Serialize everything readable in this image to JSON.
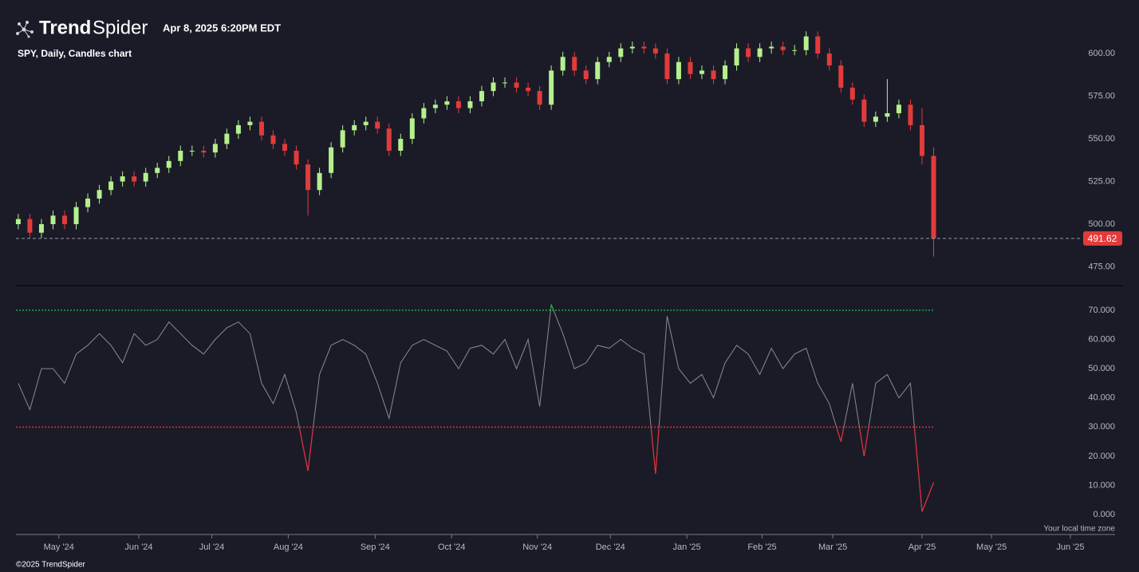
{
  "header": {
    "brand_bold": "Trend",
    "brand": "Spider",
    "timestamp": "Apr 8, 2025 6:20PM EDT"
  },
  "time_zone_note": "Your local time zone",
  "copyright": "©2025 TrendSpider",
  "chart_data": [
    {
      "type": "candlestick",
      "title": "SPY, Daily, Candles chart",
      "up_color": "#b5f08d",
      "down_color": "#e23b3b",
      "xlim": [
        -0.2,
        91.7
      ],
      "ylim": [
        464,
        622
      ],
      "yticks": [
        {
          "value": 475,
          "label": "475.00"
        },
        {
          "value": 500,
          "label": "500.00"
        },
        {
          "value": 525,
          "label": "525.00"
        },
        {
          "value": 550,
          "label": "550.00"
        },
        {
          "value": 575,
          "label": "575.00"
        },
        {
          "value": 600,
          "label": "600.00"
        }
      ],
      "open": [
        500,
        503,
        495,
        500,
        505,
        500,
        510,
        515,
        520,
        525,
        528,
        525,
        530,
        533,
        537,
        543,
        543,
        542,
        547,
        553,
        558,
        560,
        552,
        547,
        543,
        535,
        520,
        530,
        545,
        555,
        558,
        560,
        556,
        543,
        550,
        562,
        568,
        570,
        572,
        568,
        572,
        578,
        583,
        583,
        580,
        578,
        570,
        590,
        598,
        590,
        585,
        595,
        598,
        603,
        604,
        603,
        600,
        585,
        595,
        588,
        590,
        585,
        593,
        603,
        598,
        603,
        604,
        602,
        602,
        610,
        600,
        593,
        580,
        573,
        560,
        563,
        565,
        570,
        558,
        540
      ],
      "high": [
        506,
        506,
        503,
        508,
        508,
        513,
        518,
        523,
        528,
        531,
        531,
        533,
        536,
        540,
        546,
        546,
        546,
        550,
        556,
        561,
        563,
        563,
        555,
        550,
        546,
        538,
        533,
        548,
        558,
        561,
        563,
        563,
        559,
        553,
        565,
        571,
        573,
        575,
        575,
        575,
        581,
        586,
        586,
        586,
        583,
        581,
        593,
        601,
        601,
        593,
        598,
        601,
        606,
        607,
        607,
        606,
        603,
        598,
        598,
        593,
        593,
        596,
        606,
        606,
        606,
        607,
        607,
        605,
        613,
        613,
        603,
        596,
        583,
        576,
        566,
        585,
        573,
        573,
        568,
        545
      ],
      "low": [
        497,
        492,
        492,
        497,
        497,
        497,
        507,
        512,
        517,
        522,
        522,
        522,
        527,
        530,
        534,
        540,
        539,
        539,
        544,
        550,
        555,
        549,
        544,
        540,
        532,
        505,
        517,
        527,
        542,
        552,
        555,
        553,
        540,
        540,
        547,
        559,
        565,
        567,
        565,
        565,
        569,
        575,
        580,
        577,
        575,
        567,
        567,
        587,
        587,
        582,
        582,
        592,
        595,
        600,
        600,
        597,
        582,
        582,
        585,
        585,
        582,
        582,
        590,
        595,
        595,
        600,
        599,
        599,
        599,
        597,
        590,
        577,
        570,
        557,
        557,
        560,
        562,
        555,
        535,
        481
      ],
      "close": [
        503,
        495,
        500,
        505,
        500,
        510,
        515,
        520,
        525,
        528,
        525,
        530,
        533,
        537,
        543,
        543,
        542,
        547,
        553,
        558,
        560,
        552,
        547,
        543,
        535,
        520,
        530,
        545,
        555,
        558,
        560,
        556,
        543,
        550,
        562,
        568,
        570,
        572,
        568,
        572,
        578,
        583,
        583,
        580,
        578,
        570,
        590,
        598,
        590,
        585,
        595,
        598,
        603,
        604,
        603,
        600,
        585,
        595,
        588,
        590,
        585,
        593,
        603,
        598,
        603,
        604,
        602,
        602,
        610,
        600,
        593,
        580,
        573,
        560,
        563,
        565,
        570,
        558,
        540,
        491.62
      ]
    },
    {
      "type": "line",
      "color": "#8a8a94",
      "xlim": [
        -0.2,
        91.7
      ],
      "ylim": [
        -6.8,
        77.9
      ],
      "yticks": [
        {
          "value": 0,
          "label": "0.000"
        },
        {
          "value": 10,
          "label": "10.000"
        },
        {
          "value": 20,
          "label": "20.000"
        },
        {
          "value": 30,
          "label": "30.000"
        },
        {
          "value": 40,
          "label": "40.000"
        },
        {
          "value": 50,
          "label": "50.000"
        },
        {
          "value": 60,
          "label": "60.000"
        },
        {
          "value": 70,
          "label": "70.000"
        }
      ],
      "xticks": [
        {
          "value": 3.5,
          "label": "May '24"
        },
        {
          "value": 10.4,
          "label": "Jun '24"
        },
        {
          "value": 16.7,
          "label": "Jul '24"
        },
        {
          "value": 23.3,
          "label": "Aug '24"
        },
        {
          "value": 30.8,
          "label": "Sep '24"
        },
        {
          "value": 37.4,
          "label": "Oct '24"
        },
        {
          "value": 44.8,
          "label": "Nov '24"
        },
        {
          "value": 51.1,
          "label": "Dec '24"
        },
        {
          "value": 57.7,
          "label": "Jan '25"
        },
        {
          "value": 64.2,
          "label": "Feb '25"
        },
        {
          "value": 70.3,
          "label": "Mar '25"
        },
        {
          "value": 78.0,
          "label": "Apr '25"
        },
        {
          "value": 84.0,
          "label": "May '25"
        },
        {
          "value": 90.8,
          "label": "Jun '25"
        }
      ],
      "levels": [
        {
          "value": 70,
          "color": "#1fa83a"
        },
        {
          "value": 30,
          "color": "#e03030"
        }
      ],
      "values": [
        45,
        36,
        50,
        50,
        45,
        55,
        58,
        62,
        58,
        52,
        62,
        58,
        60,
        66,
        62,
        58,
        55,
        60,
        64,
        66,
        62,
        45,
        38,
        48,
        35,
        15,
        48,
        58,
        60,
        58,
        55,
        45,
        33,
        52,
        58,
        60,
        58,
        56,
        50,
        57,
        58,
        55,
        60,
        50,
        60,
        37,
        72,
        62,
        50,
        52,
        58,
        57,
        60,
        57,
        55,
        14,
        68,
        50,
        45,
        48,
        40,
        52,
        58,
        55,
        48,
        57,
        50,
        55,
        57,
        45,
        38,
        25,
        45,
        20,
        45,
        48,
        40,
        45,
        1,
        11
      ]
    }
  ]
}
